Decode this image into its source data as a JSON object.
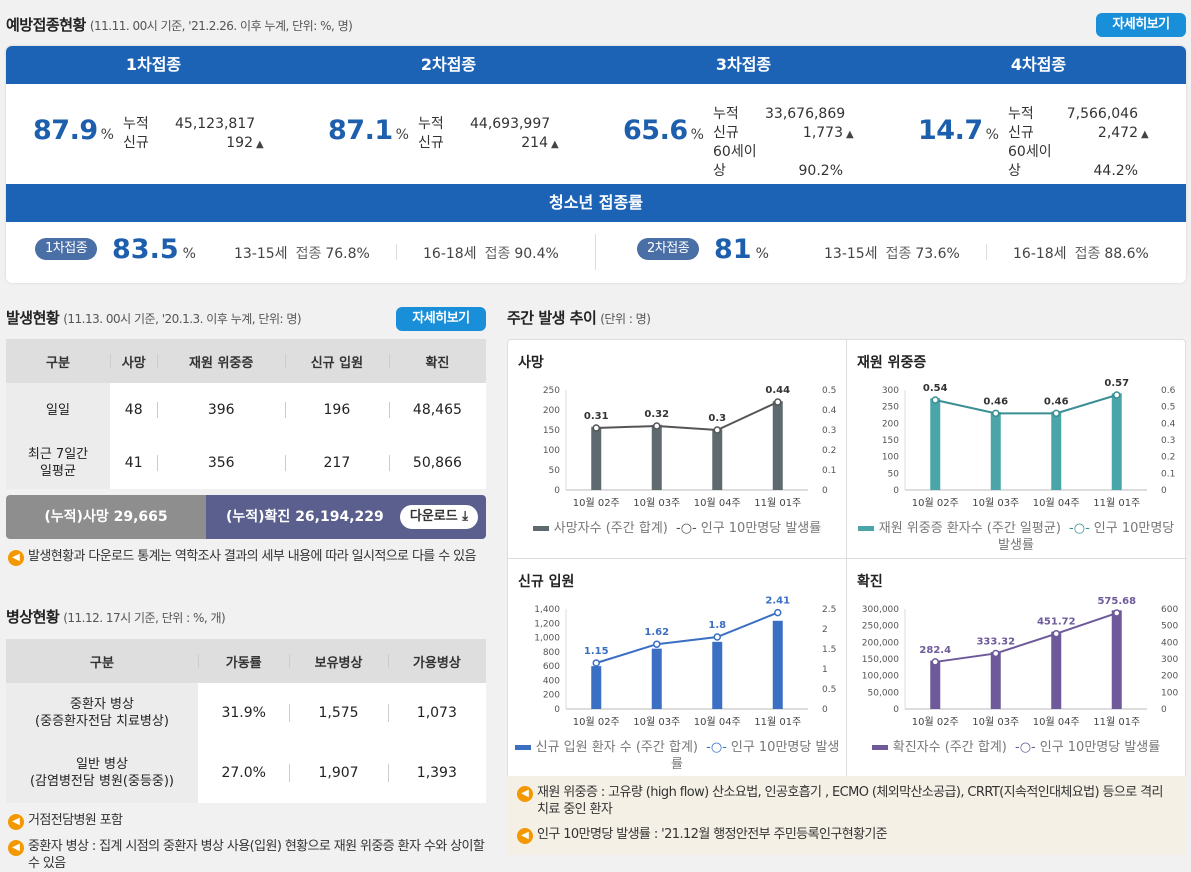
{
  "vaccination": {
    "title": "예방접종현황",
    "subtitle": "(11.11. 00시 기준, '21.2.26. 이후 누계, 단위: %, 명)",
    "more_label": "자세히보기",
    "doses": [
      {
        "title": "1차접종",
        "pct": "87.9",
        "unit": "%",
        "rows": [
          {
            "k": "누적",
            "v": "45,123,817",
            "up": false
          },
          {
            "k": "신규",
            "v": "192",
            "up": true
          }
        ]
      },
      {
        "title": "2차접종",
        "pct": "87.1",
        "unit": "%",
        "rows": [
          {
            "k": "누적",
            "v": "44,693,997",
            "up": false
          },
          {
            "k": "신규",
            "v": "214",
            "up": true
          }
        ]
      },
      {
        "title": "3차접종",
        "pct": "65.6",
        "unit": "%",
        "rows": [
          {
            "k": "누적",
            "v": "33,676,869",
            "up": false
          },
          {
            "k": "신규",
            "v": "1,773",
            "up": true
          },
          {
            "k": "60세이상",
            "v": "90.2%",
            "up": false
          }
        ]
      },
      {
        "title": "4차접종",
        "pct": "14.7",
        "unit": "%",
        "rows": [
          {
            "k": "누적",
            "v": "7,566,046",
            "up": false
          },
          {
            "k": "신규",
            "v": "2,472",
            "up": true
          },
          {
            "k": "60세이상",
            "v": "44.2%",
            "up": false
          }
        ]
      }
    ],
    "teen": {
      "title": "청소년 접종률",
      "first": {
        "label": "1차접종",
        "pct": "83.5",
        "unit": "%",
        "a_age": "13-15세",
        "a_lbl": "접종",
        "a_val": "76.8%",
        "b_age": "16-18세",
        "b_lbl": "접종",
        "b_val": "90.4%"
      },
      "second": {
        "label": "2차접종",
        "pct": "81",
        "unit": "%",
        "a_age": "13-15세",
        "a_lbl": "접종",
        "a_val": "73.6%",
        "b_age": "16-18세",
        "b_lbl": "접종",
        "b_val": "88.6%"
      }
    }
  },
  "occurrence": {
    "title": "발생현황",
    "subtitle": "(11.13. 00시 기준, '20.1.3. 이후 누계, 단위: 명)",
    "more_label": "자세히보기",
    "headers": [
      "구분",
      "사망",
      "재원 위중증",
      "신규 입원",
      "확진"
    ],
    "rows": [
      {
        "label": "일일",
        "vals": [
          "48",
          "396",
          "196",
          "48,465"
        ]
      },
      {
        "label1": "최근 7일간",
        "label2": "일평균",
        "vals": [
          "41",
          "356",
          "217",
          "50,866"
        ]
      }
    ],
    "cum_death": "(누적)사망   29,665",
    "cum_confirmed": "(누적)확진   26,194,229",
    "download": "다운로드",
    "note": "발생현황과 다운로드 통계는 역학조사 결과의 세부 내용에 따라 일시적으로 다를 수 있음"
  },
  "beds": {
    "title": "병상현황",
    "subtitle": "(11.12. 17시 기준, 단위 : %, 개)",
    "headers": [
      "구분",
      "가동률",
      "보유병상",
      "가용병상"
    ],
    "rows": [
      {
        "label1": "중환자 병상",
        "label2": "(중증환자전담 치료병상)",
        "vals": [
          "31.9%",
          "1,575",
          "1,073"
        ]
      },
      {
        "label1": "일반 병상",
        "label2": "(감염병전담 병원(중등중))",
        "vals": [
          "27.0%",
          "1,907",
          "1,393"
        ]
      }
    ],
    "note1": "거점전담병원 포함",
    "note2": "중환자 병상 : 집계 시점의 중환자 병상 사용(입원) 현황으로 재원 위중증 환자 수와 상이할 수 있음"
  },
  "weekly": {
    "title": "주간 발생 추이",
    "subtitle": "(단위 : 명)",
    "note1": "재원 위중증 : 고유량 (high flow) 산소요법, 인공호흡기 , ECMO (체외막산소공급), CRRT(지속적인대체요법) 등으로 격리 치료 중인 환자",
    "note2": "인구 10만명당 발생률 : '21.12월 행정안전부 주민등록인구현황기준"
  },
  "chart_data": [
    {
      "type": "bar",
      "title": "사망",
      "categories": [
        "10월 02주",
        "10월 03주",
        "10월 04주",
        "11월 01주"
      ],
      "bar_values": [
        158,
        163,
        152,
        222
      ],
      "line_values": [
        0.31,
        0.32,
        0.3,
        0.44
      ],
      "line_labels": [
        "0.31",
        "0.32",
        "0.3",
        "0.44"
      ],
      "ylim": [
        0,
        250
      ],
      "ylim2": [
        0,
        0.5
      ],
      "yticks": [
        "0",
        "50",
        "100",
        "150",
        "200",
        "250"
      ],
      "y2ticks": [
        "0",
        "0.1",
        "0.2",
        "0.3",
        "0.4",
        "0.5"
      ],
      "bar_color": "#5e6a6e",
      "line_color": "#555",
      "legend_bar": "사망자수 (주간 합계)",
      "legend_line": "인구 10만명당 발생률"
    },
    {
      "type": "bar",
      "title": "재원 위중증",
      "categories": [
        "10월 02주",
        "10월 03주",
        "10월 04주",
        "11월 01주"
      ],
      "bar_values": [
        275,
        234,
        235,
        290
      ],
      "line_values": [
        0.54,
        0.46,
        0.46,
        0.57
      ],
      "line_labels": [
        "0.54",
        "0.46",
        "0.46",
        "0.57"
      ],
      "ylim": [
        0,
        300
      ],
      "ylim2": [
        0,
        0.6
      ],
      "yticks": [
        "0",
        "50",
        "100",
        "150",
        "200",
        "250",
        "300"
      ],
      "y2ticks": [
        "0",
        "0.1",
        "0.2",
        "0.3",
        "0.4",
        "0.5",
        "0.6"
      ],
      "bar_color": "#4aa5a8",
      "line_color": "#3a8f94",
      "legend_bar": "재원 위중증 환자수 (주간 일평균)",
      "legend_line": "인구 10만명당 발생률"
    },
    {
      "type": "bar",
      "title": "신규 입원",
      "categories": [
        "10월 02주",
        "10월 03주",
        "10월 04주",
        "11월 01주"
      ],
      "bar_values": [
        600,
        845,
        940,
        1235
      ],
      "line_values": [
        1.15,
        1.62,
        1.8,
        2.41
      ],
      "line_labels": [
        "1.15",
        "1.62",
        "1.8",
        "2.41"
      ],
      "ylim": [
        0,
        1400
      ],
      "ylim2": [
        0,
        2.5
      ],
      "yticks": [
        "0",
        "200",
        "400",
        "600",
        "800",
        "1,000",
        "1,200",
        "1,400"
      ],
      "y2ticks": [
        "0",
        "0.5",
        "1",
        "1.5",
        "2",
        "2.5"
      ],
      "bar_color": "#3a6fc4",
      "line_color": "#3a6fc4",
      "legend_bar": "신규 입원 환자 수 (주간 합계)",
      "legend_line": "인구 10만명당 발생률"
    },
    {
      "type": "bar",
      "title": "확진",
      "categories": [
        "10월 02주",
        "10월 03주",
        "10월 04주",
        "11월 01주"
      ],
      "bar_values": [
        145000,
        171000,
        232000,
        296000
      ],
      "line_values": [
        282.4,
        333.32,
        451.72,
        575.68
      ],
      "line_labels": [
        "282.4",
        "333.32",
        "451.72",
        "575.68"
      ],
      "ylim": [
        0,
        300000
      ],
      "ylim2": [
        0,
        600
      ],
      "yticks": [
        "0",
        "50,000",
        "100,000",
        "150,000",
        "200,000",
        "250,000",
        "300,000"
      ],
      "y2ticks": [
        "0",
        "100",
        "200",
        "300",
        "400",
        "500",
        "600"
      ],
      "bar_color": "#6e5a9a",
      "line_color": "#6e5a9a",
      "legend_bar": "확진자수 (주간 합계)",
      "legend_line": "인구 10만명당 발생률"
    }
  ]
}
